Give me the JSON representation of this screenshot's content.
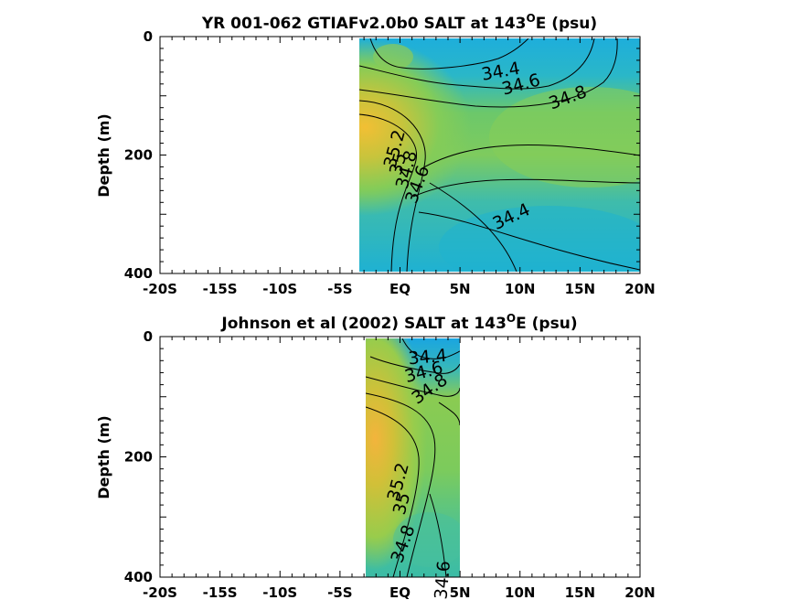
{
  "chart_data": [
    {
      "type": "heatmap",
      "title": "YR 001-062 GTIAFv2.0b0 SALT at 143",
      "title_sup": "O",
      "title_suffix": "E (psu)",
      "ylabel": "Depth (m)",
      "xlabel": "",
      "xlim": [
        -20,
        20
      ],
      "ylim": [
        400,
        0
      ],
      "x_ticks": [
        -20,
        -15,
        -10,
        -5,
        0,
        5,
        10,
        15,
        20
      ],
      "x_tick_labels": [
        "-20S",
        "-15S",
        "-10S",
        "-5S",
        "EQ",
        "5N",
        "10N",
        "15N",
        "20N"
      ],
      "y_ticks": [
        0,
        200,
        400
      ],
      "y_tick_labels": [
        "0",
        "200",
        "400"
      ],
      "data_extent": {
        "lat": [
          -3.0,
          20.0
        ],
        "depth": [
          0,
          395
        ]
      },
      "colormap": "parula",
      "contour_labels": [
        {
          "text": "34.4",
          "lat": 8.4,
          "depth": 60,
          "rotation": -10
        },
        {
          "text": "34.6",
          "lat": 10.1,
          "depth": 82,
          "rotation": -15
        },
        {
          "text": "34.8",
          "lat": 14.0,
          "depth": 104,
          "rotation": -20
        },
        {
          "text": "35.2",
          "lat": -0.4,
          "depth": 190,
          "rotation": -75
        },
        {
          "text": "35",
          "lat": -0.1,
          "depth": 215,
          "rotation": -75
        },
        {
          "text": "34.8",
          "lat": 0.6,
          "depth": 225,
          "rotation": -75
        },
        {
          "text": "34.6",
          "lat": 1.5,
          "depth": 250,
          "rotation": -70
        },
        {
          "text": "34.4",
          "lat": 9.3,
          "depth": 305,
          "rotation": -25
        }
      ]
    },
    {
      "type": "heatmap",
      "title": "Johnson et al (2002) SALT at 143",
      "title_sup": "O",
      "title_suffix": "E (psu)",
      "ylabel": "Depth (m)",
      "xlabel": "",
      "xlim": [
        -20,
        20
      ],
      "ylim": [
        400,
        0
      ],
      "x_ticks": [
        -20,
        -15,
        -10,
        -5,
        0,
        5,
        10,
        15,
        20
      ],
      "x_tick_labels": [
        "-20S",
        "-15S",
        "-10S",
        "-5S",
        "EQ",
        "5N",
        "10N",
        "15N",
        "20N"
      ],
      "y_ticks": [
        0,
        200,
        400
      ],
      "y_tick_labels": [
        "0",
        "200",
        "400"
      ],
      "data_extent": {
        "lat": [
          -2.7,
          5.0
        ],
        "depth": [
          5,
          400
        ]
      },
      "colormap": "parula",
      "contour_labels": [
        {
          "text": "34.4",
          "lat": 2.3,
          "depth": 35,
          "rotation": -5
        },
        {
          "text": "34.6",
          "lat": 2.0,
          "depth": 60,
          "rotation": -15
        },
        {
          "text": "34.8",
          "lat": 2.5,
          "depth": 88,
          "rotation": -35
        },
        {
          "text": "35.2",
          "lat": -0.1,
          "depth": 242,
          "rotation": -75
        },
        {
          "text": "35",
          "lat": 0.2,
          "depth": 278,
          "rotation": -75
        },
        {
          "text": "34.8",
          "lat": 0.3,
          "depth": 345,
          "rotation": -70
        },
        {
          "text": "34.6",
          "lat": 3.6,
          "depth": 405,
          "rotation": -85
        }
      ]
    }
  ]
}
